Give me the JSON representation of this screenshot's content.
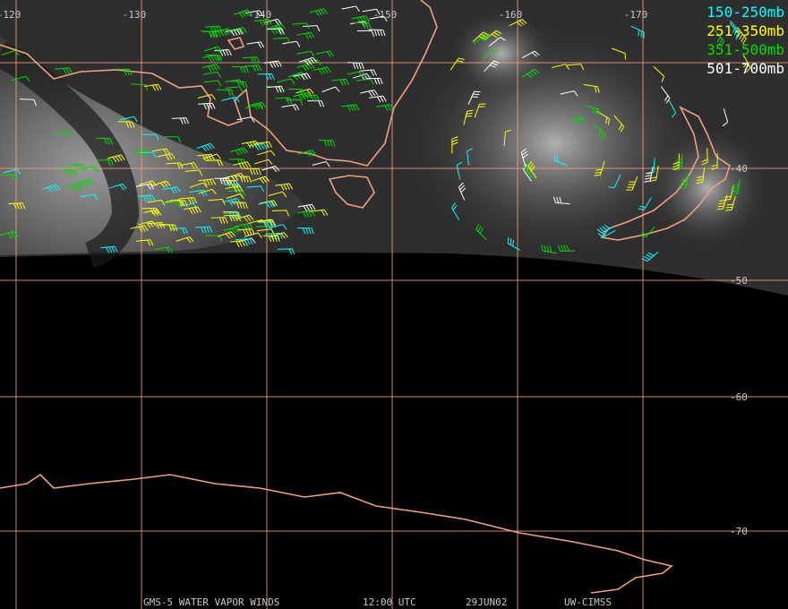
{
  "map": {
    "lon_labels": [
      -120,
      -130,
      -140,
      -150,
      -160,
      -170
    ],
    "lat_labels": [
      -40,
      -50,
      -60,
      -70
    ],
    "legend": [
      {
        "label": "150-250mb",
        "color": "#00ffff"
      },
      {
        "label": "251-350mb",
        "color": "#ffff00"
      },
      {
        "label": "351-500mb",
        "color": "#00dd00"
      },
      {
        "label": "501-700mb",
        "color": "#ffffff"
      }
    ],
    "footer": [
      "GMS-5 WATER VAPOR WINDS",
      "12:00 UTC",
      "29JUN02",
      "UW-CIMSS"
    ]
  }
}
